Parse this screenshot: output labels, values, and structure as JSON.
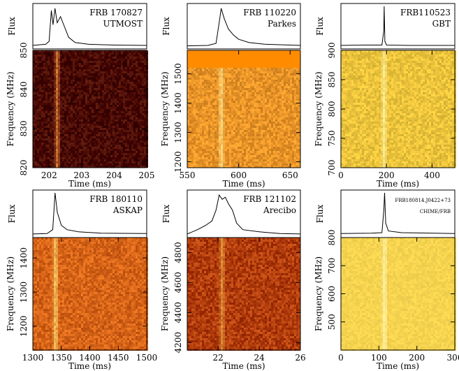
{
  "chart_data": [
    {
      "type": "heatmap",
      "title": "FRB 170827",
      "telescope": "UTMOST",
      "flux_label": "Flux",
      "xlabel": "Time (ms)",
      "ylabel": "Frequency (MHz)",
      "xlim": [
        201.5,
        205
      ],
      "ylim": [
        820,
        850
      ],
      "xticks": [
        202,
        203,
        204,
        205
      ],
      "yticks": [
        820,
        830,
        840,
        850
      ],
      "burst_time": 202.25,
      "colormap": "dark-red",
      "profile": [
        {
          "x": 201.5,
          "y": 0.05
        },
        {
          "x": 201.9,
          "y": 0.08
        },
        {
          "x": 202.0,
          "y": 0.15
        },
        {
          "x": 202.07,
          "y": 0.9
        },
        {
          "x": 202.12,
          "y": 0.55
        },
        {
          "x": 202.18,
          "y": 0.95
        },
        {
          "x": 202.25,
          "y": 0.6
        },
        {
          "x": 202.35,
          "y": 0.75
        },
        {
          "x": 202.45,
          "y": 0.55
        },
        {
          "x": 202.6,
          "y": 0.25
        },
        {
          "x": 202.8,
          "y": 0.12
        },
        {
          "x": 203.2,
          "y": 0.08
        },
        {
          "x": 204.0,
          "y": 0.06
        },
        {
          "x": 205.0,
          "y": 0.05
        }
      ]
    },
    {
      "type": "heatmap",
      "title": "FRB 110220",
      "telescope": "Parkes",
      "flux_label": "Flux",
      "xlabel": "Time (ms)",
      "ylabel": "Frequency (MHz)",
      "xlim": [
        550,
        660
      ],
      "ylim": [
        1180,
        1580
      ],
      "xticks": [
        550,
        600,
        650
      ],
      "yticks": [
        1200,
        1300,
        1400,
        1500
      ],
      "burst_time": 583,
      "colormap": "orange",
      "profile": [
        {
          "x": 550,
          "y": 0.04
        },
        {
          "x": 570,
          "y": 0.05
        },
        {
          "x": 578,
          "y": 0.1
        },
        {
          "x": 581,
          "y": 0.6
        },
        {
          "x": 583,
          "y": 0.95
        },
        {
          "x": 586,
          "y": 0.7
        },
        {
          "x": 590,
          "y": 0.45
        },
        {
          "x": 595,
          "y": 0.3
        },
        {
          "x": 600,
          "y": 0.2
        },
        {
          "x": 610,
          "y": 0.12
        },
        {
          "x": 625,
          "y": 0.08
        },
        {
          "x": 660,
          "y": 0.05
        }
      ]
    },
    {
      "type": "heatmap",
      "title": "FRB110523",
      "telescope": "GBT",
      "flux_label": "Flux",
      "xlabel": "Time (ms)",
      "ylabel": "Frequency (MHz)",
      "xlim": [
        0,
        500
      ],
      "ylim": [
        700,
        900
      ],
      "xticks": [
        0,
        200,
        400
      ],
      "yticks": [
        700,
        750,
        800,
        850,
        900
      ],
      "burst_time": 190,
      "colormap": "yellow",
      "profile": [
        {
          "x": 0,
          "y": 0.05
        },
        {
          "x": 100,
          "y": 0.06
        },
        {
          "x": 180,
          "y": 0.06
        },
        {
          "x": 188,
          "y": 0.4
        },
        {
          "x": 190,
          "y": 1.0
        },
        {
          "x": 193,
          "y": 0.15
        },
        {
          "x": 200,
          "y": 0.06
        },
        {
          "x": 300,
          "y": 0.05
        },
        {
          "x": 500,
          "y": 0.05
        }
      ]
    },
    {
      "type": "heatmap",
      "title": "FRB 180110",
      "telescope": "ASKAP",
      "flux_label": "Flux",
      "xlabel": "Time (ms)",
      "ylabel": "Frequency (MHz)",
      "xlim": [
        1300,
        1500
      ],
      "ylim": [
        1130,
        1460
      ],
      "xticks": [
        1300,
        1350,
        1400,
        1450,
        1500
      ],
      "yticks": [
        1200,
        1300,
        1400
      ],
      "burst_time": 1340,
      "colormap": "orange-red",
      "profile": [
        {
          "x": 1300,
          "y": 0.05
        },
        {
          "x": 1325,
          "y": 0.06
        },
        {
          "x": 1335,
          "y": 0.15
        },
        {
          "x": 1339,
          "y": 1.0
        },
        {
          "x": 1343,
          "y": 0.55
        },
        {
          "x": 1350,
          "y": 0.25
        },
        {
          "x": 1360,
          "y": 0.15
        },
        {
          "x": 1380,
          "y": 0.1
        },
        {
          "x": 1420,
          "y": 0.07
        },
        {
          "x": 1500,
          "y": 0.06
        }
      ]
    },
    {
      "type": "heatmap",
      "title": "FRB 121102",
      "telescope": "Arecibo",
      "flux_label": "Flux",
      "xlabel": "Time (ms)",
      "ylabel": "Frequency (MHz)",
      "xlim": [
        20.5,
        26
      ],
      "ylim": [
        4150,
        4900
      ],
      "xticks": [
        22,
        24,
        26
      ],
      "yticks": [
        4200,
        4400,
        4600,
        4800
      ],
      "burst_time": 22.2,
      "colormap": "red-brown",
      "profile": [
        {
          "x": 20.5,
          "y": 0.05
        },
        {
          "x": 21.0,
          "y": 0.15
        },
        {
          "x": 21.4,
          "y": 0.25
        },
        {
          "x": 21.7,
          "y": 0.35
        },
        {
          "x": 21.9,
          "y": 0.6
        },
        {
          "x": 22.05,
          "y": 0.95
        },
        {
          "x": 22.2,
          "y": 0.85
        },
        {
          "x": 22.35,
          "y": 0.9
        },
        {
          "x": 22.5,
          "y": 0.75
        },
        {
          "x": 22.7,
          "y": 0.6
        },
        {
          "x": 22.9,
          "y": 0.3
        },
        {
          "x": 23.2,
          "y": 0.15
        },
        {
          "x": 24.0,
          "y": 0.1
        },
        {
          "x": 25.0,
          "y": 0.06
        },
        {
          "x": 26.0,
          "y": 0.05
        }
      ]
    },
    {
      "type": "heatmap",
      "title": "FRB180814.J0422+73",
      "telescope": "CHIME/FRB",
      "flux_label": "Flux",
      "xlabel": "Time (ms)",
      "ylabel": "Frequency (MHz)",
      "xlim": [
        0,
        300
      ],
      "ylim": [
        400,
        800
      ],
      "xticks": [
        0,
        100,
        200,
        300
      ],
      "yticks": [
        500,
        600,
        700,
        800
      ],
      "burst_time": 115,
      "colormap": "light-yellow",
      "profile": [
        {
          "x": 0,
          "y": 0.06
        },
        {
          "x": 80,
          "y": 0.07
        },
        {
          "x": 108,
          "y": 0.08
        },
        {
          "x": 113,
          "y": 0.6
        },
        {
          "x": 115,
          "y": 1.0
        },
        {
          "x": 118,
          "y": 0.3
        },
        {
          "x": 125,
          "y": 0.12
        },
        {
          "x": 160,
          "y": 0.08
        },
        {
          "x": 300,
          "y": 0.06
        }
      ]
    }
  ]
}
